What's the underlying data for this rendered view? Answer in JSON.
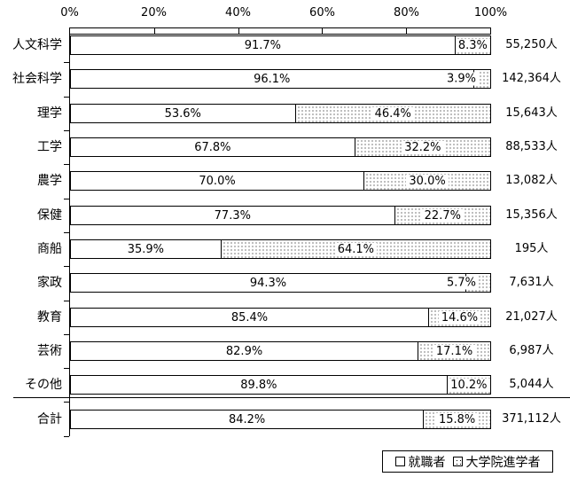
{
  "chart_data": {
    "type": "bar",
    "orientation": "horizontal",
    "stacked": true,
    "units": "percent",
    "title": "",
    "categories": [
      "人文科学",
      "社会科学",
      "理学",
      "工学",
      "農学",
      "保健",
      "商船",
      "家政",
      "教育",
      "芸術",
      "その他",
      "合計"
    ],
    "series": [
      {
        "name": "就職者",
        "pattern": "solid-white",
        "values": [
          91.7,
          96.1,
          53.6,
          67.8,
          70.0,
          77.3,
          35.9,
          94.3,
          85.4,
          82.9,
          89.8,
          84.2
        ]
      },
      {
        "name": "大学院進学者",
        "pattern": "dots",
        "values": [
          8.3,
          3.9,
          46.4,
          32.2,
          30.0,
          22.7,
          64.1,
          5.7,
          14.6,
          17.1,
          10.2,
          15.8
        ]
      }
    ],
    "totals": [
      "55,250人",
      "142,364人",
      "15,643人",
      "88,533人",
      "13,082人",
      "15,356人",
      "195人",
      "7,631人",
      "21,027人",
      "6,987人",
      "5,044人",
      "371,112人"
    ],
    "x_axis": {
      "tick_labels": [
        "0%",
        "20%",
        "40%",
        "60%",
        "80%",
        "100%"
      ],
      "min": 0,
      "max": 100,
      "position": "top"
    },
    "summary_category": "合計",
    "separator_before_summary": true,
    "legend": {
      "position": "bottom-right",
      "entries": [
        "就職者",
        "大学院進学者"
      ]
    }
  },
  "colors": {
    "ink": "#000000",
    "paper": "#ffffff"
  }
}
